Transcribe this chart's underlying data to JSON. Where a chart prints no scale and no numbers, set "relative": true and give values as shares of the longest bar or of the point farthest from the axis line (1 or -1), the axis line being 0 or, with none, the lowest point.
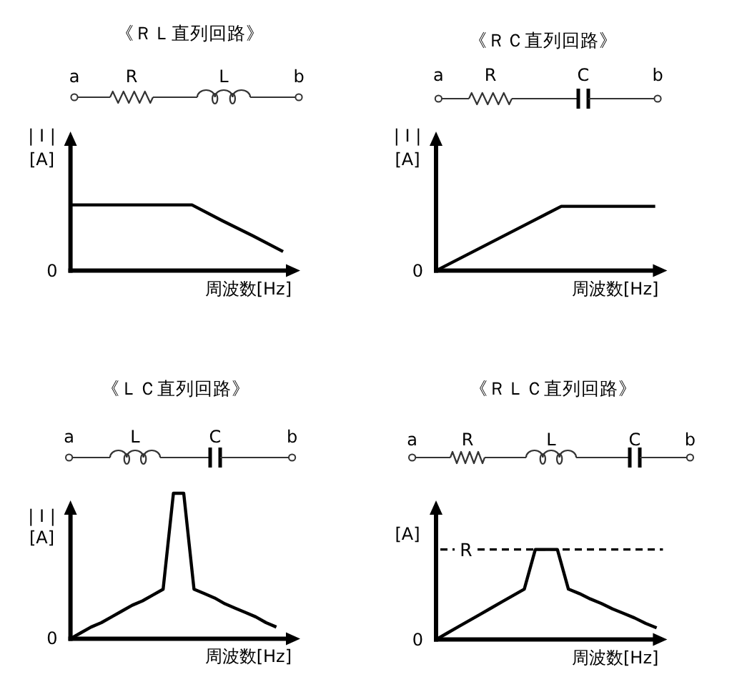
{
  "chart_data": [
    {
      "type": "line",
      "title": "《ＲＬ直列回路》",
      "xlabel": "周波数[Hz]",
      "ylabel": "| I |\n[A]",
      "relative": true,
      "categories": [
        null,
        null,
        null,
        null,
        null,
        null,
        null,
        null
      ],
      "series": [
        {
          "color": "#000000",
          "values": [
            1,
            1,
            1,
            1,
            1,
            0.76,
            0.53,
            0.29
          ]
        }
      ],
      "annotations": [
        "a",
        "R",
        "L",
        "b",
        "0"
      ]
    },
    {
      "type": "line",
      "title": "《ＲＣ直列回路》",
      "xlabel": "周波数[Hz]",
      "ylabel": "| I |\n[A]",
      "relative": true,
      "categories": [
        null,
        null,
        null,
        null,
        null,
        null,
        null,
        null
      ],
      "series": [
        {
          "color": "#000000",
          "values": [
            0,
            0.25,
            0.5,
            0.75,
            1,
            1,
            1,
            1
          ]
        }
      ],
      "annotations": [
        "a",
        "R",
        "C",
        "b",
        "0"
      ]
    },
    {
      "type": "line",
      "title": "《ＬＣ直列回路》",
      "xlabel": "周波数[Hz]",
      "ylabel": "| I |\n[A]",
      "relative": true,
      "categories": [
        null,
        null,
        null,
        null,
        null,
        null,
        null,
        null,
        null,
        null,
        null,
        null,
        null,
        null,
        null,
        null,
        null,
        null,
        null,
        null,
        null
      ],
      "series": [
        {
          "color": "#000000",
          "values": [
            0,
            0.04,
            0.08,
            0.11,
            0.15,
            0.19,
            0.23,
            0.26,
            0.3,
            0.34,
            1,
            1,
            0.34,
            0.31,
            0.28,
            0.24,
            0.21,
            0.18,
            0.15,
            0.11,
            0.08
          ]
        }
      ],
      "annotations": [
        "a",
        "L",
        "C",
        "b",
        "0"
      ]
    },
    {
      "type": "line",
      "title": "《ＲＬＣ直列回路》",
      "xlabel": "周波数[Hz]",
      "ylabel": "[A]",
      "relative": true,
      "categories": [
        null,
        null,
        null,
        null,
        null,
        null,
        null,
        null,
        null,
        null,
        null,
        null,
        null,
        null,
        null,
        null,
        null,
        null,
        null,
        null,
        null
      ],
      "series": [
        {
          "color": "#000000",
          "values": [
            0,
            0.07,
            0.14,
            0.21,
            0.28,
            0.35,
            0.42,
            0.49,
            0.56,
            1,
            1,
            1,
            0.56,
            0.51,
            0.45,
            0.4,
            0.34,
            0.29,
            0.24,
            0.18,
            0.13
          ]
        }
      ],
      "ref_lines": [
        {
          "axis": "y",
          "value": 1,
          "label": "R",
          "line_style": "dashed"
        }
      ],
      "annotations": [
        "a",
        "R",
        "L",
        "C",
        "b",
        "0"
      ]
    }
  ]
}
